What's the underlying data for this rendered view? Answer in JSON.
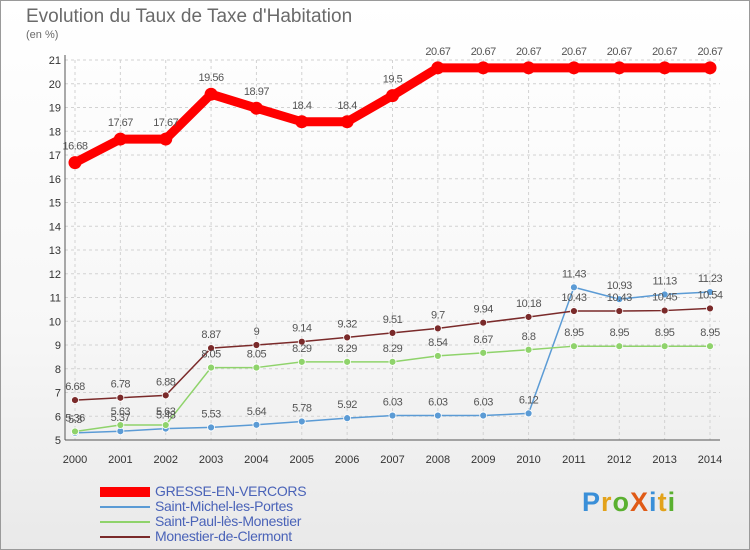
{
  "header": {
    "title": "Evolution du Taux de Taxe d'Habitation",
    "unit": "(en %)"
  },
  "logo": {
    "text": "ProXiti",
    "letters": [
      "P",
      "r",
      "o",
      "X",
      "i",
      "t",
      "i"
    ],
    "colors": [
      "#3a8fd8",
      "#e3a21a",
      "#5ab030",
      "#e05a16",
      "#3a8fd8",
      "#e3a21a",
      "#5ab030"
    ]
  },
  "chart_data": {
    "type": "line",
    "title": "Evolution du Taux de Taxe d'Habitation",
    "ylabel": "(en %)",
    "x": [
      "2000",
      "2001",
      "2002",
      "2003",
      "2004",
      "2005",
      "2006",
      "2007",
      "2008",
      "2009",
      "2010",
      "2011",
      "2012",
      "2013",
      "2014"
    ],
    "ylim": [
      5,
      21
    ],
    "yticks": [
      "5",
      "6",
      "7",
      "8",
      "9",
      "10",
      "11",
      "12",
      "13",
      "14",
      "15",
      "16",
      "17",
      "18",
      "19",
      "20",
      "21"
    ],
    "grid": true,
    "legend_position": "bottom-left",
    "series": [
      {
        "name": "GRESSE-EN-VERCORS",
        "color": "#ff0000",
        "values": [
          16.68,
          17.67,
          17.67,
          19.56,
          18.97,
          18.4,
          18.4,
          19.5,
          20.67,
          20.67,
          20.67,
          20.67,
          20.67,
          20.67,
          20.67
        ],
        "labels": [
          "16.68",
          "17.67",
          "17.67",
          "19.56",
          "18.97",
          "18.4",
          "18.4",
          "19.5",
          "20.67",
          "20.67",
          "20.67",
          "20.67",
          "20.67",
          "20.67",
          "20.67"
        ]
      },
      {
        "name": "Saint-Michel-les-Portes",
        "color": "#5b9bd5",
        "values": [
          5.3,
          5.37,
          5.48,
          5.53,
          5.64,
          5.78,
          5.92,
          6.03,
          6.03,
          6.03,
          6.12,
          11.43,
          10.93,
          11.13,
          11.23
        ],
        "labels": [
          "5.3",
          "5.37",
          "5.48",
          "5.53",
          "5.64",
          "5.78",
          "5.92",
          "6.03",
          "6.03",
          "6.03",
          "6.12",
          "11.43",
          "10.93",
          "11.13",
          "11.23"
        ]
      },
      {
        "name": "Saint-Paul-lès-Monestier",
        "color": "#8fd36b",
        "values": [
          5.36,
          5.63,
          5.63,
          8.05,
          8.05,
          8.29,
          8.29,
          8.29,
          8.54,
          8.67,
          8.8,
          8.95,
          8.95,
          8.95,
          8.95
        ],
        "labels": [
          "5.36",
          "5.63",
          "5.63",
          "8.05",
          "8.05",
          "8.29",
          "8.29",
          "8.29",
          "8.54",
          "8.67",
          "8.8",
          "8.95",
          "8.95",
          "8.95",
          "8.95"
        ]
      },
      {
        "name": "Monestier-de-Clermont",
        "color": "#7a2a2a",
        "values": [
          6.68,
          6.78,
          6.88,
          8.87,
          9,
          9.14,
          9.32,
          9.51,
          9.7,
          9.94,
          10.18,
          10.43,
          10.43,
          10.45,
          10.54
        ],
        "labels": [
          "6.68",
          "6.78",
          "6.88",
          "8.87",
          "9",
          "9.14",
          "9.32",
          "9.51",
          "9.7",
          "9.94",
          "10.18",
          "10.43",
          "10.43",
          "10.45",
          "10.54"
        ]
      }
    ]
  }
}
